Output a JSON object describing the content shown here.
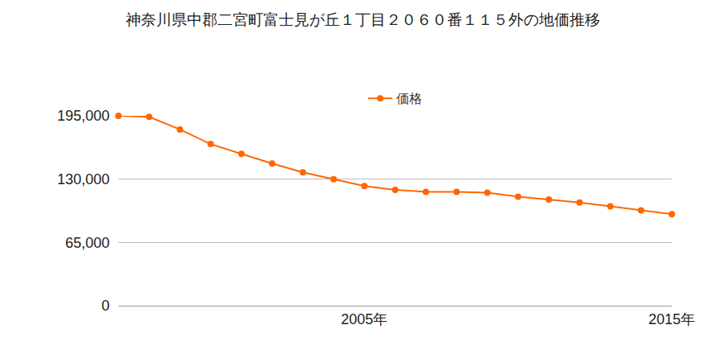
{
  "chart_data": {
    "type": "line",
    "title": "神奈川県中郡二宮町富士見が丘１丁目２０６０番１１５外の地価推移",
    "x": [
      1997,
      1998,
      1999,
      2000,
      2001,
      2002,
      2003,
      2004,
      2005,
      2006,
      2007,
      2008,
      2009,
      2010,
      2011,
      2012,
      2013,
      2014,
      2015
    ],
    "series": [
      {
        "name": "価格",
        "color": "#ff6600",
        "values": [
          195000,
          194000,
          181000,
          166000,
          156000,
          146000,
          137000,
          130000,
          123000,
          119000,
          117000,
          117000,
          116000,
          112000,
          109000,
          106000,
          102000,
          98000,
          94000
        ]
      }
    ],
    "xlim": [
      1997,
      2015
    ],
    "xticks": [
      {
        "value": 2005,
        "label": "2005年"
      },
      {
        "value": 2015,
        "label": "2015年"
      }
    ],
    "ylim": [
      0,
      195000
    ],
    "yticks": [
      0,
      {
        "value": 65000,
        "label": "65,000"
      },
      {
        "value": 130000,
        "label": "130,000"
      },
      {
        "value": 195000,
        "label": "195,000"
      }
    ],
    "grid": true,
    "legend": "top",
    "marker": "circle"
  }
}
